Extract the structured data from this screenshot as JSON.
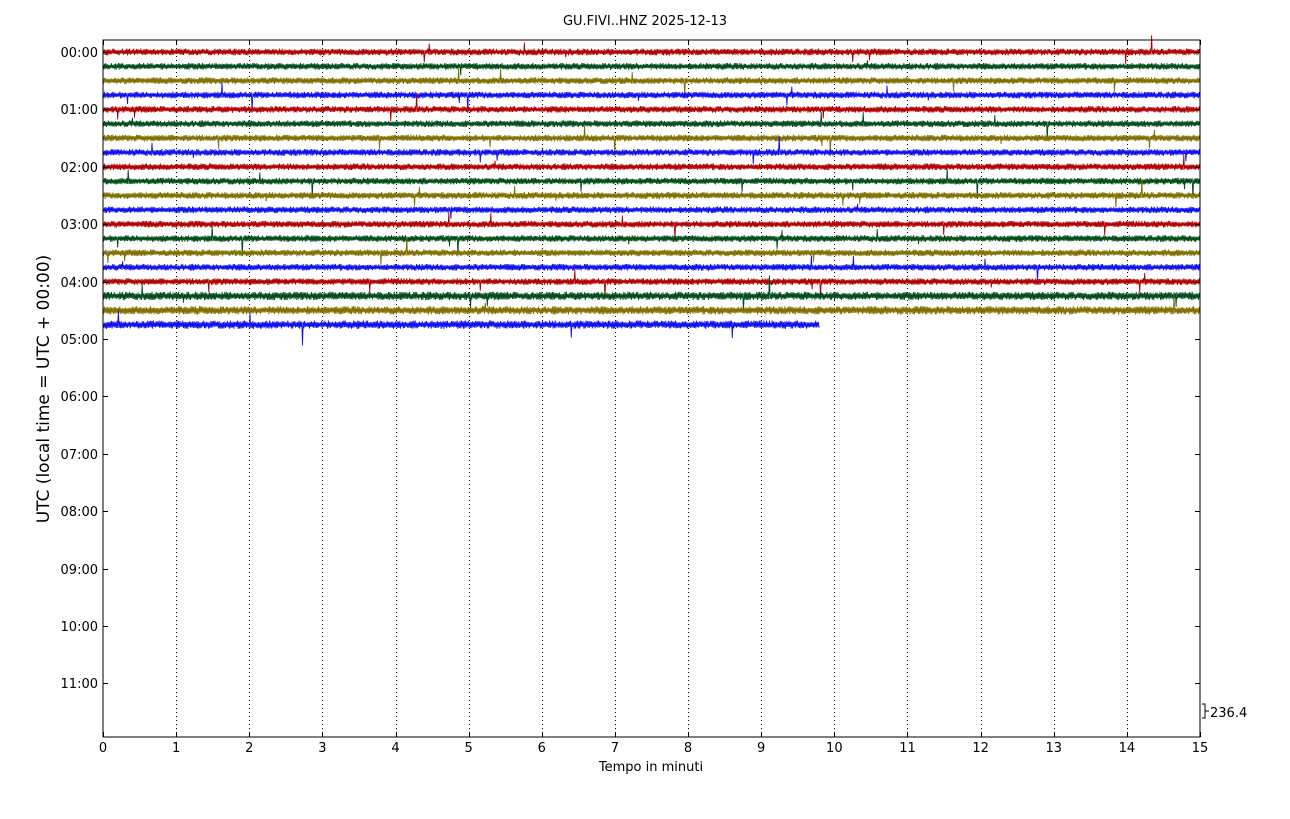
{
  "chart_data": {
    "type": "line",
    "title": "GU.FIVI..HNZ 2025-12-13",
    "xlabel": "Tempo in minuti",
    "ylabel": "UTC (local time = UTC + 00:00)",
    "xlim": [
      0,
      15
    ],
    "x_ticks": [
      "0",
      "1",
      "2",
      "3",
      "4",
      "5",
      "6",
      "7",
      "8",
      "9",
      "10",
      "11",
      "12",
      "13",
      "14",
      "15"
    ],
    "y_ticks": [
      "00:00",
      "01:00",
      "02:00",
      "03:00",
      "04:00",
      "05:00",
      "06:00",
      "07:00",
      "08:00",
      "09:00",
      "10:00",
      "11:00"
    ],
    "grid": "vertical dotted",
    "scale_label": "236.4",
    "trace_colors": [
      "#b00000",
      "#004c1a",
      "#807000",
      "#1010ee"
    ],
    "traces_start": "00:00",
    "trace_interval_minutes": 15,
    "trace_count": 20,
    "last_trace_end_minute": 9.8
  }
}
